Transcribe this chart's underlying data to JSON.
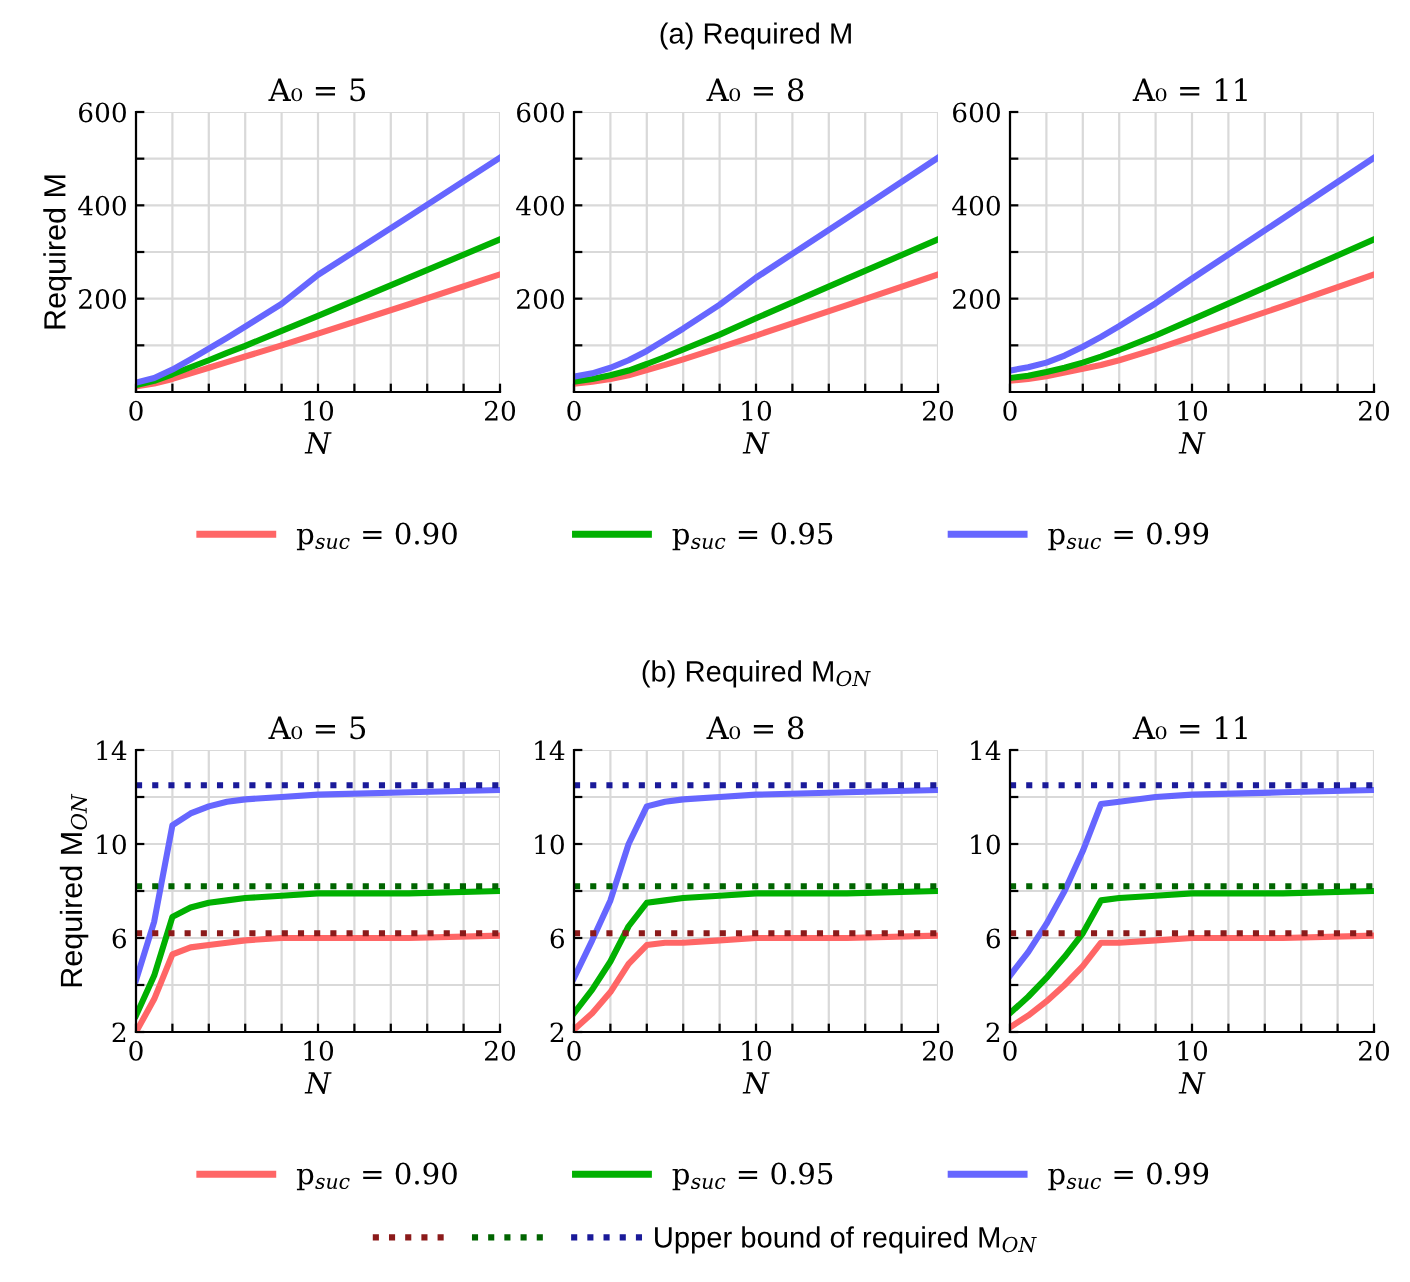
{
  "chart_data": [
    {
      "type": "line",
      "title": "A₀ = 5",
      "xlabel": "N",
      "ylabel": "Required M",
      "xlim": [
        0,
        20
      ],
      "xticks": [
        0,
        {
          "value": 2,
          "label": null
        },
        {
          "value": 4,
          "label": null
        },
        {
          "value": 6,
          "label": null
        },
        {
          "value": 8,
          "label": null
        },
        10,
        {
          "value": 12,
          "label": null
        },
        {
          "value": 14,
          "label": null
        },
        {
          "value": 16,
          "label": null
        },
        {
          "value": 18,
          "label": null
        },
        20
      ],
      "ylim": [
        0,
        600
      ],
      "yticks": [
        {
          "value": 100,
          "label": null
        },
        200,
        {
          "value": 300,
          "label": null
        },
        400,
        {
          "value": 500,
          "label": null
        },
        600
      ],
      "grid": true,
      "legend": "bottom",
      "x": [
        0,
        1,
        2,
        3,
        4,
        5,
        6,
        8,
        10,
        15,
        20
      ],
      "series": [
        {
          "name": "p$_{suc}$ = 0.90",
          "color": "#ff6666",
          "values": [
            12,
            18,
            28,
            40,
            52,
            64,
            76,
            100,
            125,
            188,
            252
          ]
        },
        {
          "name": "p$_{suc}$ = 0.95",
          "color": "#00b000",
          "values": [
            15,
            24,
            38,
            53,
            68,
            84,
            99,
            131,
            163,
            245,
            327
          ]
        },
        {
          "name": "p$_{suc}$ = 0.99",
          "color": "#6666ff",
          "values": [
            20,
            30,
            48,
            70,
            93,
            116,
            140,
            189,
            251,
            376,
            502
          ]
        }
      ]
    },
    {
      "type": "line",
      "subtitle": "(a) Required M",
      "title": "A₀ = 8",
      "xlabel": "N",
      "xlim": [
        0,
        20
      ],
      "xticks": [
        0,
        {
          "value": 2,
          "label": null
        },
        {
          "value": 4,
          "label": null
        },
        {
          "value": 6,
          "label": null
        },
        {
          "value": 8,
          "label": null
        },
        10,
        {
          "value": 12,
          "label": null
        },
        {
          "value": 14,
          "label": null
        },
        {
          "value": 16,
          "label": null
        },
        {
          "value": 18,
          "label": null
        },
        20
      ],
      "ylim": [
        0,
        600
      ],
      "yticks": [
        {
          "value": 100,
          "label": null
        },
        200,
        {
          "value": 300,
          "label": null
        },
        400,
        {
          "value": 500,
          "label": null
        },
        600
      ],
      "grid": true,
      "x": [
        0,
        1,
        2,
        3,
        4,
        5,
        6,
        8,
        10,
        15,
        20
      ],
      "series": [
        {
          "color": "#ff6666",
          "values": [
            18,
            22,
            28,
            36,
            47,
            58,
            70,
            95,
            121,
            186,
            252
          ]
        },
        {
          "color": "#00b000",
          "values": [
            22,
            28,
            36,
            46,
            60,
            75,
            91,
            123,
            158,
            243,
            327
          ]
        },
        {
          "color": "#6666ff",
          "values": [
            33,
            40,
            52,
            68,
            88,
            112,
            136,
            187,
            245,
            373,
            502
          ]
        }
      ]
    },
    {
      "type": "line",
      "title": "A₀ = 11",
      "xlabel": "N",
      "xlim": [
        0,
        20
      ],
      "xticks": [
        0,
        {
          "value": 2,
          "label": null
        },
        {
          "value": 4,
          "label": null
        },
        {
          "value": 6,
          "label": null
        },
        {
          "value": 8,
          "label": null
        },
        10,
        {
          "value": 12,
          "label": null
        },
        {
          "value": 14,
          "label": null
        },
        {
          "value": 16,
          "label": null
        },
        {
          "value": 18,
          "label": null
        },
        20
      ],
      "ylim": [
        0,
        600
      ],
      "yticks": [
        {
          "value": 100,
          "label": null
        },
        200,
        {
          "value": 300,
          "label": null
        },
        400,
        {
          "value": 500,
          "label": null
        },
        600
      ],
      "grid": true,
      "x": [
        0,
        1,
        2,
        3,
        4,
        5,
        6,
        8,
        10,
        15,
        20
      ],
      "series": [
        {
          "color": "#ff6666",
          "values": [
            24,
            28,
            34,
            42,
            50,
            58,
            68,
            92,
            118,
            184,
            252
          ]
        },
        {
          "color": "#00b000",
          "values": [
            30,
            35,
            43,
            52,
            63,
            76,
            90,
            121,
            155,
            241,
            327
          ]
        },
        {
          "color": "#6666ff",
          "values": [
            46,
            53,
            63,
            78,
            97,
            118,
            141,
            190,
            243,
            372,
            502
          ]
        }
      ]
    },
    {
      "type": "line",
      "title": "A₀ = 5",
      "xlabel": "N",
      "ylabel": "Required M$_{ON}$",
      "xlim": [
        0,
        20
      ],
      "xticks": [
        0,
        {
          "value": 2,
          "label": null
        },
        {
          "value": 4,
          "label": null
        },
        {
          "value": 6,
          "label": null
        },
        {
          "value": 8,
          "label": null
        },
        10,
        {
          "value": 12,
          "label": null
        },
        {
          "value": 14,
          "label": null
        },
        {
          "value": 16,
          "label": null
        },
        {
          "value": 18,
          "label": null
        },
        20
      ],
      "ylim": [
        2,
        14
      ],
      "yticks": [
        2,
        {
          "value": 4,
          "label": null
        },
        6,
        {
          "value": 8,
          "label": null
        },
        10,
        {
          "value": 12,
          "label": null
        },
        14
      ],
      "grid": true,
      "legend": "bottom",
      "x": [
        0,
        1,
        2,
        3,
        4,
        5,
        6,
        8,
        10,
        15,
        20
      ],
      "series": [
        {
          "name": "p$_{suc}$ = 0.90",
          "color": "#ff6666",
          "values": [
            2.0,
            3.4,
            5.3,
            5.6,
            5.7,
            5.8,
            5.9,
            6.0,
            6.0,
            6.0,
            6.1
          ]
        },
        {
          "name": "p$_{suc}$ = 0.95",
          "color": "#00b000",
          "values": [
            2.7,
            4.4,
            6.9,
            7.3,
            7.5,
            7.6,
            7.7,
            7.8,
            7.9,
            7.9,
            8.0
          ]
        },
        {
          "name": "p$_{suc}$ = 0.99",
          "color": "#6666ff",
          "values": [
            4.2,
            6.7,
            10.8,
            11.3,
            11.6,
            11.8,
            11.9,
            12.0,
            12.1,
            12.2,
            12.3
          ]
        }
      ],
      "ref_lines": [
        {
          "axis": "y",
          "value": 6.2,
          "color": "#8b1a1a",
          "line_style": "dotted"
        },
        {
          "axis": "y",
          "value": 8.2,
          "color": "#006400",
          "line_style": "dotted"
        },
        {
          "axis": "y",
          "value": 12.5,
          "color": "#1a1a99",
          "line_style": "dotted",
          "label": "Upper bound of required M$_{ON}$"
        }
      ]
    },
    {
      "type": "line",
      "subtitle": "(b) Required M$_{ON}$",
      "title": "A₀ = 8",
      "xlabel": "N",
      "xlim": [
        0,
        20
      ],
      "xticks": [
        0,
        {
          "value": 2,
          "label": null
        },
        {
          "value": 4,
          "label": null
        },
        {
          "value": 6,
          "label": null
        },
        {
          "value": 8,
          "label": null
        },
        10,
        {
          "value": 12,
          "label": null
        },
        {
          "value": 14,
          "label": null
        },
        {
          "value": 16,
          "label": null
        },
        {
          "value": 18,
          "label": null
        },
        20
      ],
      "ylim": [
        2,
        14
      ],
      "yticks": [
        2,
        {
          "value": 4,
          "label": null
        },
        6,
        {
          "value": 8,
          "label": null
        },
        10,
        {
          "value": 12,
          "label": null
        },
        14
      ],
      "grid": true,
      "x": [
        0,
        1,
        2,
        3,
        4,
        5,
        6,
        8,
        10,
        15,
        20
      ],
      "series": [
        {
          "color": "#ff6666",
          "values": [
            2.1,
            2.8,
            3.7,
            4.9,
            5.7,
            5.8,
            5.8,
            5.9,
            6.0,
            6.0,
            6.1
          ]
        },
        {
          "color": "#00b000",
          "values": [
            2.8,
            3.8,
            5.0,
            6.5,
            7.5,
            7.6,
            7.7,
            7.8,
            7.9,
            7.9,
            8.0
          ]
        },
        {
          "color": "#6666ff",
          "values": [
            4.3,
            5.9,
            7.6,
            10.0,
            11.6,
            11.8,
            11.9,
            12.0,
            12.1,
            12.2,
            12.3
          ]
        }
      ],
      "ref_lines": [
        {
          "axis": "y",
          "value": 6.2,
          "color": "#8b1a1a",
          "line_style": "dotted"
        },
        {
          "axis": "y",
          "value": 8.2,
          "color": "#006400",
          "line_style": "dotted"
        },
        {
          "axis": "y",
          "value": 12.5,
          "color": "#1a1a99",
          "line_style": "dotted"
        }
      ]
    },
    {
      "type": "line",
      "title": "A₀ = 11",
      "xlabel": "N",
      "xlim": [
        0,
        20
      ],
      "xticks": [
        0,
        {
          "value": 2,
          "label": null
        },
        {
          "value": 4,
          "label": null
        },
        {
          "value": 6,
          "label": null
        },
        {
          "value": 8,
          "label": null
        },
        10,
        {
          "value": 12,
          "label": null
        },
        {
          "value": 14,
          "label": null
        },
        {
          "value": 16,
          "label": null
        },
        {
          "value": 18,
          "label": null
        },
        20
      ],
      "ylim": [
        2,
        14
      ],
      "yticks": [
        2,
        {
          "value": 4,
          "label": null
        },
        6,
        {
          "value": 8,
          "label": null
        },
        10,
        {
          "value": 12,
          "label": null
        },
        14
      ],
      "grid": true,
      "x": [
        0,
        1,
        2,
        3,
        4,
        5,
        6,
        8,
        10,
        15,
        20
      ],
      "series": [
        {
          "color": "#ff6666",
          "values": [
            2.2,
            2.7,
            3.3,
            4.0,
            4.8,
            5.8,
            5.8,
            5.9,
            6.0,
            6.0,
            6.1
          ]
        },
        {
          "color": "#00b000",
          "values": [
            2.8,
            3.5,
            4.3,
            5.2,
            6.2,
            7.6,
            7.7,
            7.8,
            7.9,
            7.9,
            8.0
          ]
        },
        {
          "color": "#6666ff",
          "values": [
            4.4,
            5.4,
            6.6,
            8.0,
            9.7,
            11.7,
            11.8,
            12.0,
            12.1,
            12.2,
            12.3
          ]
        }
      ],
      "ref_lines": [
        {
          "axis": "y",
          "value": 6.2,
          "color": "#8b1a1a",
          "line_style": "dotted"
        },
        {
          "axis": "y",
          "value": 8.2,
          "color": "#006400",
          "line_style": "dotted"
        },
        {
          "axis": "y",
          "value": 12.5,
          "color": "#1a1a99",
          "line_style": "dotted"
        }
      ]
    }
  ]
}
